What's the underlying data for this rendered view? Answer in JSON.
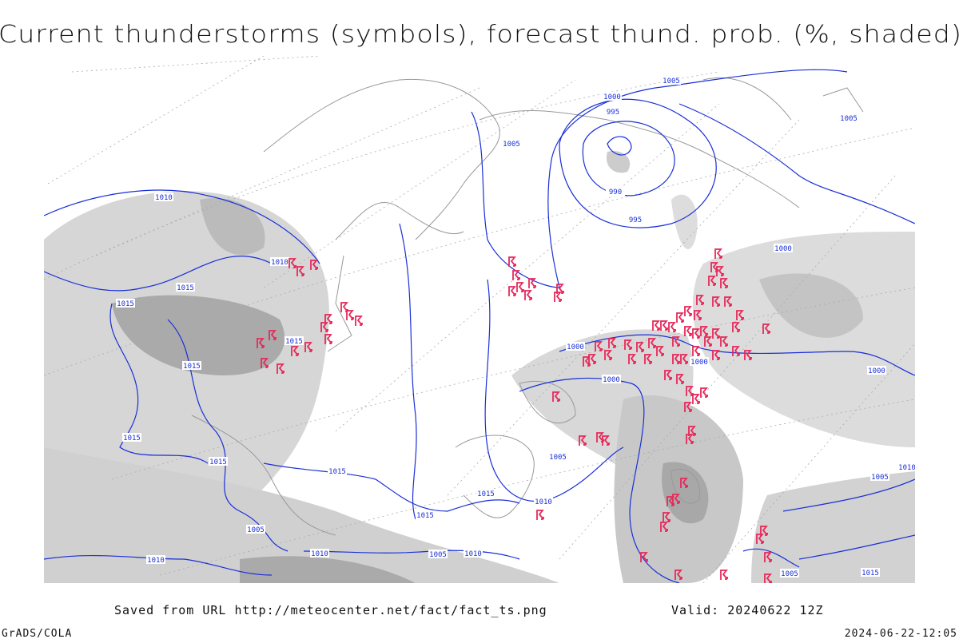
{
  "title": "Current thunderstorms (symbols), forecast thund. prob. (%, shaded)",
  "source": "Saved from URL http://meteocenter.net/fact/fact_ts.png",
  "valid": "Valid: 20240622 12Z",
  "credit": "GrADS/COLA",
  "timestamp": "2024-06-22-12:05",
  "isobar_labels": [
    "1010",
    "1010",
    "1015",
    "1015",
    "1015",
    "1015",
    "1015",
    "1015",
    "1015",
    "1015",
    "1005",
    "1010",
    "1010",
    "1005",
    "1010",
    "1005",
    "1000",
    "995",
    "990",
    "995",
    "1005",
    "1000",
    "1005",
    "1000",
    "1000",
    "1000",
    "1000",
    "1010",
    "1005",
    "1005",
    "1010",
    "1005",
    "1015",
    "1015"
  ]
}
